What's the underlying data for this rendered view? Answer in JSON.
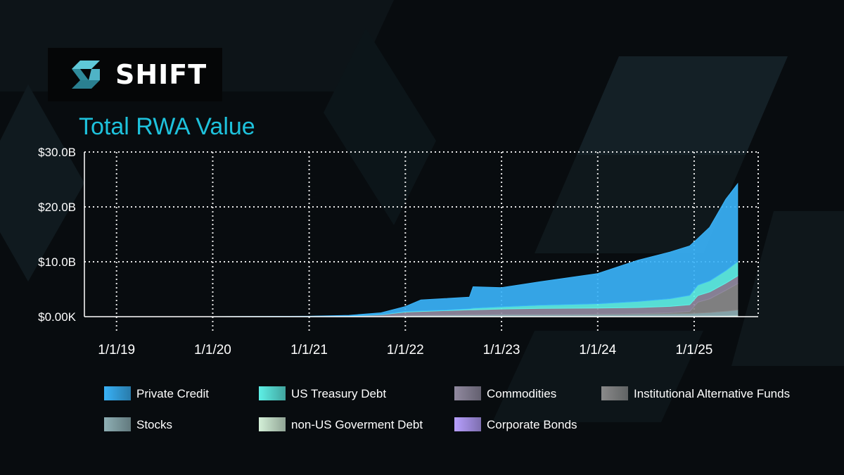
{
  "brand": {
    "name": "SHIFT"
  },
  "chart_data": {
    "type": "area",
    "stacked": true,
    "title": "Total RWA Value",
    "xlabel": "",
    "ylabel": "",
    "x_ticks": [
      "1/1/19",
      "1/1/20",
      "1/1/21",
      "1/1/22",
      "1/1/23",
      "1/1/24",
      "1/1/25"
    ],
    "y_ticks": [
      "$0.00K",
      "$10.0B",
      "$20.0B",
      "$30.0B"
    ],
    "ylim": [
      0,
      30
    ],
    "y_unit": "B USD",
    "grid": true,
    "legend_position": "bottom",
    "x": [
      "2018-09-01",
      "2019-01-01",
      "2020-01-01",
      "2021-01-01",
      "2021-06-01",
      "2021-10-01",
      "2022-01-01",
      "2022-03-01",
      "2022-06-01",
      "2022-09-01",
      "2022-09-15",
      "2023-01-01",
      "2023-06-01",
      "2024-01-01",
      "2024-06-01",
      "2024-10-01",
      "2024-12-15",
      "2025-01-15",
      "2025-03-01",
      "2025-05-01",
      "2025-06-15"
    ],
    "series": [
      {
        "name": "Corporate Bonds",
        "color": "#b8a0ff",
        "values": [
          0,
          0,
          0,
          0,
          0,
          0,
          0.05,
          0.05,
          0.05,
          0.05,
          0.05,
          0.05,
          0.05,
          0.06,
          0.06,
          0.06,
          0.07,
          0.07,
          0.08,
          0.09,
          0.1
        ]
      },
      {
        "name": "non-US Goverment Debt",
        "color": "#d4f0d8",
        "values": [
          0,
          0,
          0,
          0,
          0,
          0,
          0.05,
          0.05,
          0.05,
          0.05,
          0.05,
          0.05,
          0.05,
          0.05,
          0.06,
          0.06,
          0.06,
          0.07,
          0.08,
          0.1,
          0.12
        ]
      },
      {
        "name": "Stocks",
        "color": "#8fb0b5",
        "values": [
          0,
          0,
          0,
          0.01,
          0.02,
          0.05,
          0.1,
          0.15,
          0.2,
          0.25,
          0.25,
          0.3,
          0.3,
          0.3,
          0.35,
          0.4,
          0.45,
          0.5,
          0.6,
          0.8,
          1.0
        ]
      },
      {
        "name": "Institutional Alternative Funds",
        "color": "#8a8a8a",
        "values": [
          0,
          0,
          0,
          0,
          0,
          0,
          0,
          0,
          0,
          0,
          0,
          0,
          0,
          0.05,
          0.1,
          0.2,
          0.4,
          2.0,
          2.5,
          3.8,
          4.8
        ]
      },
      {
        "name": "Commodities",
        "color": "#918aa0",
        "values": [
          0,
          0,
          0,
          0.05,
          0.1,
          0.3,
          0.65,
          0.7,
          0.8,
          0.9,
          0.9,
          1.0,
          1.1,
          1.1,
          1.1,
          1.15,
          1.2,
          1.2,
          1.25,
          1.3,
          1.4
        ]
      },
      {
        "name": "US Treasury Debt",
        "color": "#5ef0e6",
        "values": [
          0,
          0,
          0,
          0,
          0.02,
          0.05,
          0.1,
          0.1,
          0.1,
          0.2,
          0.3,
          0.4,
          0.6,
          0.8,
          1.1,
          1.4,
          1.7,
          1.9,
          2.0,
          2.3,
          2.6
        ]
      },
      {
        "name": "Private Credit",
        "color": "#39b2f7",
        "values": [
          0,
          0,
          0,
          0.02,
          0.1,
          0.3,
          0.9,
          2.0,
          2.1,
          2.1,
          3.9,
          3.5,
          4.3,
          5.5,
          7.5,
          8.5,
          9.0,
          8.5,
          9.8,
          13.0,
          14.2
        ]
      }
    ]
  },
  "legend": [
    {
      "label": "Private Credit",
      "color": "#39b2f7"
    },
    {
      "label": "US Treasury Debt",
      "color": "#5ef0e6"
    },
    {
      "label": "Commodities",
      "color": "#918aa0"
    },
    {
      "label": "Institutional Alternative Funds",
      "color": "#8a8a8a"
    },
    {
      "label": "Stocks",
      "color": "#8fb0b5"
    },
    {
      "label": "non-US Goverment Debt",
      "color": "#d4f0d8"
    },
    {
      "label": "Corporate Bonds",
      "color": "#b8a0ff"
    }
  ]
}
